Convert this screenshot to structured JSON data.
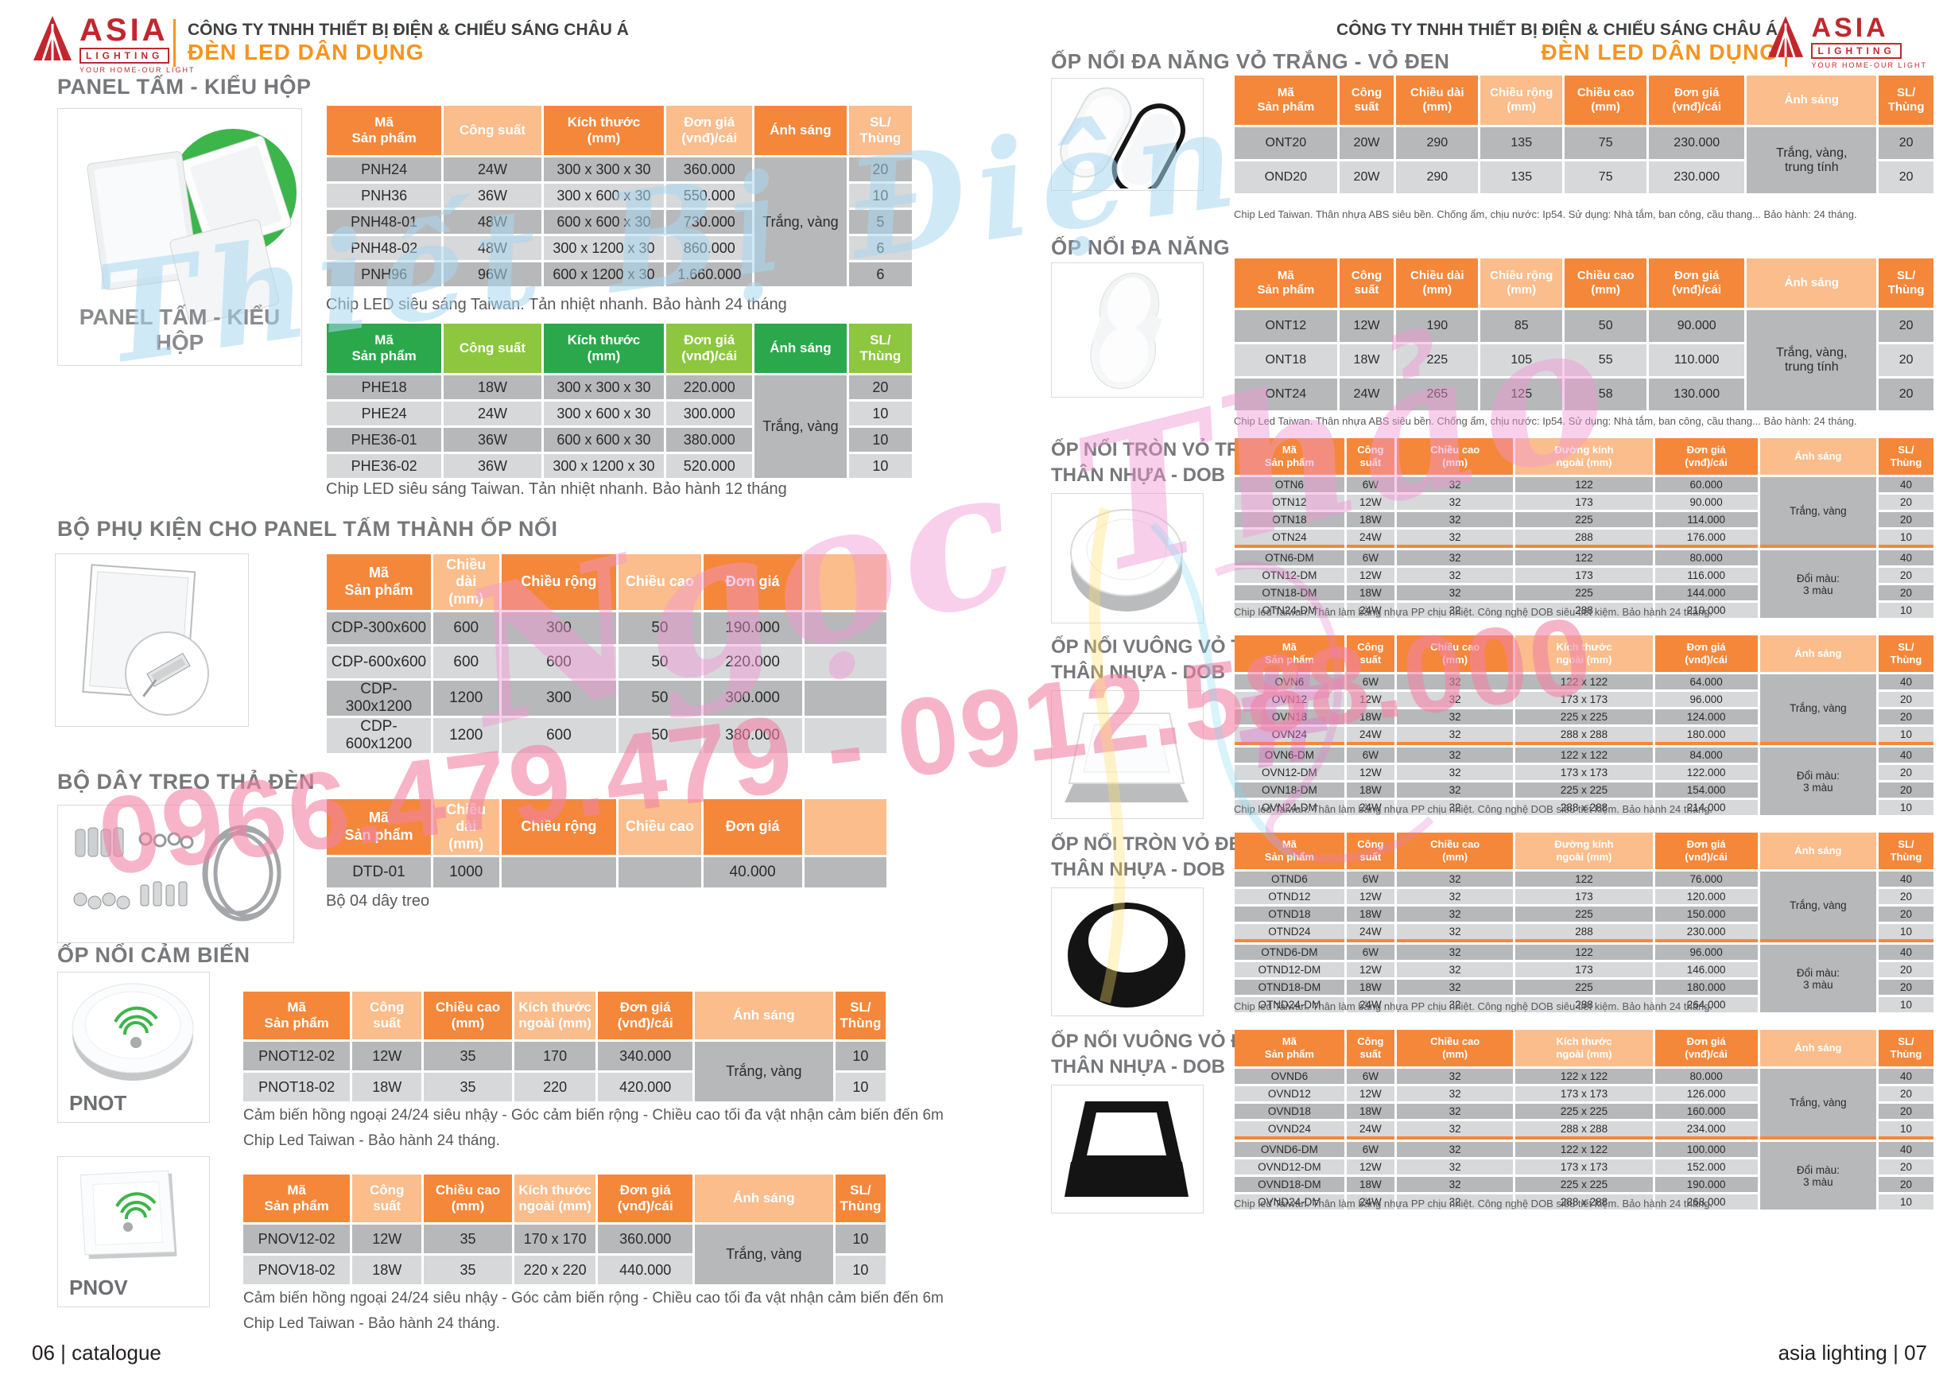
{
  "brand": {
    "name": "ASIA",
    "sub": "LIGHTING",
    "tagline": "YOUR HOME-OUR LIGHT",
    "company": "CÔNG TY TNHH THIẾT BỊ ĐIỆN & CHIẾU SÁNG CHÂU Á",
    "division": "ĐÈN LED DÂN DỤNG"
  },
  "footer": {
    "left": "06 | catalogue",
    "right": "asia lighting | 07"
  },
  "watermark": {
    "line1": "Thiết Bị Điện",
    "line2": "Ngọc Thảo",
    "hash": "#",
    "phone": "0966.479.479 - 0912.588.000"
  },
  "colors": {
    "orange_dark": "#F5873B",
    "orange_light": "#FBBD8C",
    "green_dark": "#2BA84C",
    "green_light": "#8DC63F",
    "row_dark": "#b7b8ba",
    "row_light": "#d7d8da",
    "merge_grey": "#c8c9cb",
    "merge_orange": "#F9C795",
    "accent": "#F7941E",
    "brand_red": "#C1272D"
  },
  "left": {
    "s1_title": "PANEL TẤM - KIỂU HỘP",
    "img1_caption": "PANEL TẤM - KIỂU HỘP",
    "t_pnh": {
      "theme": "orange",
      "widths": [
        20,
        17,
        21,
        15,
        16,
        11
      ],
      "columns": [
        "Mã\nSản phẩm",
        "Công suất",
        "Kích thước\n(mm)",
        "Đơn giá\n(vnđ)/cái",
        "Ánh sáng",
        "SL/\nThùng"
      ],
      "rows": [
        [
          "PNH24",
          "24W",
          "300 x 300 x 30",
          "360.000",
          null,
          "20"
        ],
        [
          "PNH36",
          "36W",
          "300 x 600 x 30",
          "550.000",
          null,
          "10"
        ],
        [
          "PNH48-01",
          "48W",
          "600 x 600 x 30",
          "730.000",
          null,
          "5"
        ],
        [
          "PNH48-02",
          "48W",
          "300 x 1200 x 30",
          "860.000",
          null,
          "6"
        ],
        [
          "PNH96",
          "96W",
          "600 x 1200 x 30",
          "1.660.000",
          null,
          "6"
        ]
      ],
      "merges": [
        {
          "col": 4,
          "from": 0,
          "to": 4,
          "text": "Trắng, vàng",
          "style": "grey"
        }
      ]
    },
    "pnh_note": "Chip LED siêu sáng  Taiwan. Tản nhiệt nhanh. Bảo hành 24 tháng",
    "t_phe": {
      "theme": "green",
      "widths": [
        20,
        17,
        21,
        15,
        16,
        11
      ],
      "columns": [
        "Mã\nSản phẩm",
        "Công suất",
        "Kích thước\n(mm)",
        "Đơn giá\n(vnđ)/cái",
        "Ánh sáng",
        "SL/\nThùng"
      ],
      "rows": [
        [
          "PHE18",
          "18W",
          "300 x 300 x 30",
          "220.000",
          null,
          "20"
        ],
        [
          "PHE24",
          "24W",
          "300 x 600 x 30",
          "300.000",
          null,
          "10"
        ],
        [
          "PHE36-01",
          "36W",
          "600 x 600 x 30",
          "380.000",
          null,
          "10"
        ],
        [
          "PHE36-02",
          "36W",
          "300 x 1200 x 30",
          "520.000",
          null,
          "10"
        ]
      ],
      "merges": [
        {
          "col": 4,
          "from": 0,
          "to": 3,
          "text": "Trắng, vàng",
          "style": "grey"
        }
      ]
    },
    "phe_note": "Chip LED siêu sáng  Taiwan. Tản nhiệt nhanh. Bảo hành 12 tháng",
    "s2_title": "BỘ PHỤ KIỆN CHO PANEL TẤM THÀNH ỐP NỔI",
    "t_cdp": {
      "theme": "orange",
      "widths": [
        19,
        12,
        21,
        15,
        18,
        15
      ],
      "columns": [
        "Mã\nSản phẩm",
        "Chiều dài\n(mm)",
        "Chiều rộng",
        "Chiều cao",
        "Đơn giá",
        ""
      ],
      "rows": [
        [
          "CDP-300x600",
          "600",
          "300",
          "50",
          "190.000",
          ""
        ],
        [
          "CDP-600x600",
          "600",
          "600",
          "50",
          "220.000",
          ""
        ],
        [
          "CDP-300x1200",
          "1200",
          "300",
          "50",
          "300.000",
          ""
        ],
        [
          "CDP-600x1200",
          "1200",
          "600",
          "50",
          "380.000",
          ""
        ]
      ]
    },
    "s3_title": "BỘ DÂY TREO THẢ ĐÈN",
    "t_dtd": {
      "theme": "orange",
      "widths": [
        19,
        12,
        21,
        15,
        18,
        15
      ],
      "columns": [
        "Mã\nSản phẩm",
        "Chiều dài\n(mm)",
        "Chiều rộng",
        "Chiều cao",
        "Đơn giá",
        ""
      ],
      "rows": [
        [
          "DTD-01",
          "1000",
          "",
          "",
          "40.000",
          ""
        ]
      ]
    },
    "dtd_note": "Bộ 04 dây treo",
    "s4_title": "ỐP NỔI CẢM BIẾN",
    "pnot_label": "PNOT",
    "t_pnot": {
      "theme": "orange",
      "widths": [
        17,
        11,
        14,
        13,
        15,
        22,
        8
      ],
      "columns": [
        "Mã\nSản phẩm",
        "Công\nsuất",
        "Chiều cao\n(mm)",
        "Kích thước\nngoài (mm)",
        "Đơn giá\n(vnđ)/cái",
        "Ánh sáng",
        "SL/\nThùng"
      ],
      "rows": [
        [
          "PNOT12-02",
          "12W",
          "35",
          "170",
          "340.000",
          null,
          "10"
        ],
        [
          "PNOT18-02",
          "18W",
          "35",
          "220",
          "420.000",
          null,
          "10"
        ]
      ],
      "merges": [
        {
          "col": 5,
          "from": 0,
          "to": 1,
          "text": "Trắng, vàng",
          "style": "grey"
        }
      ]
    },
    "sensor_note1": "Cảm biến hồng ngoại 24/24 siêu nhậy - Góc cảm biến rộng - Chiều cao tối đa vật nhận cảm biến đến 6m",
    "sensor_note2": "Chip Led Taiwan - Bảo hành 24 tháng.",
    "pnov_label": "PNOV",
    "t_pnov": {
      "theme": "orange",
      "widths": [
        17,
        11,
        14,
        13,
        15,
        22,
        8
      ],
      "columns": [
        "Mã\nSản phẩm",
        "Công\nsuất",
        "Chiều cao\n(mm)",
        "Kích thước\nngoài (mm)",
        "Đơn giá\n(vnđ)/cái",
        "Ánh sáng",
        "SL/\nThùng"
      ],
      "rows": [
        [
          "PNOV12-02",
          "12W",
          "35",
          "170 x 170",
          "360.000",
          null,
          "10"
        ],
        [
          "PNOV18-02",
          "18W",
          "35",
          "220 x 220",
          "440.000",
          null,
          "10"
        ]
      ],
      "merges": [
        {
          "col": 5,
          "from": 0,
          "to": 1,
          "text": "Trắng, vàng",
          "style": "grey"
        }
      ]
    }
  },
  "right": {
    "s1_title": "ỐP NỔI ĐA NĂNG VỎ TRẮNG - VỎ ĐEN",
    "t_ont20": {
      "theme": "orange",
      "widths": [
        15,
        8,
        12,
        12,
        12,
        14,
        19,
        8
      ],
      "shades": [
        "d",
        "d",
        "d",
        "l",
        "d",
        "d",
        "l",
        "d"
      ],
      "columns": [
        "Mã\nSản phẩm",
        "Công\nsuất",
        "Chiều dài\n(mm)",
        "Chiều rộng\n(mm)",
        "Chiều cao\n(mm)",
        "Đơn giá\n(vnđ)/cái",
        "Ánh sáng",
        "SL/\nThùng"
      ],
      "rows": [
        [
          "ONT20",
          "20W",
          "290",
          "135",
          "75",
          "230.000",
          null,
          "20"
        ],
        [
          "OND20",
          "20W",
          "290",
          "135",
          "75",
          "230.000",
          null,
          "20"
        ]
      ],
      "merges": [
        {
          "col": 6,
          "from": 0,
          "to": 1,
          "text": "Trắng, vàng,\ntrung tính",
          "style": "grey"
        }
      ]
    },
    "abs_note": "Chip Led Taiwan. Thân nhựa ABS siêu bền. Chống ẩm, chịu nước: Ip54. Sử dụng: Nhà tắm, ban công, cầu thang... Bảo hành: 24 tháng.",
    "s2_title": "ỐP NỔI  ĐA NĂNG",
    "t_ont": {
      "theme": "orange",
      "widths": [
        15,
        8,
        12,
        12,
        12,
        14,
        19,
        8
      ],
      "shades": [
        "d",
        "d",
        "d",
        "l",
        "d",
        "d",
        "l",
        "d"
      ],
      "columns": [
        "Mã\nSản phẩm",
        "Công\nsuất",
        "Chiều dài\n(mm)",
        "Chiều rộng\n(mm)",
        "Chiều cao\n(mm)",
        "Đơn giá\n(vnđ)/cái",
        "Ánh sáng",
        "SL/\nThùng"
      ],
      "rows": [
        [
          "ONT12",
          "12W",
          "190",
          "85",
          "50",
          "90.000",
          null,
          "20"
        ],
        [
          "ONT18",
          "18W",
          "225",
          "105",
          "55",
          "110.000",
          null,
          "20"
        ],
        [
          "ONT24",
          "24W",
          "265",
          "125",
          "58",
          "130.000",
          null,
          "20"
        ]
      ],
      "merges": [
        {
          "col": 6,
          "from": 0,
          "to": 2,
          "text": "Trắng, vàng,\ntrung tính",
          "style": "grey"
        }
      ]
    },
    "s3_title_1": "ỐP NỔI TRÒN VỎ TRẮNG",
    "s3_title_2": "THÂN NHỰA - DOB",
    "t_otn": {
      "theme": "orange",
      "widths": [
        16,
        7,
        17,
        20,
        15,
        17,
        8
      ],
      "shades": [
        "d",
        "d",
        "d",
        "l",
        "d",
        "l",
        "d"
      ],
      "columns": [
        "Mã\nSản phẩm",
        "Công\nsuất",
        "Chiều cao\n(mm)",
        "Đường kính\nngoài (mm)",
        "Đơn giá\n(vnđ)/cái",
        "Ánh sáng",
        "SL/\nThùng"
      ],
      "rows": [
        [
          "OTN6",
          "6W",
          "32",
          "122",
          "60.000",
          null,
          "40"
        ],
        [
          "OTN12",
          "12W",
          "32",
          "173",
          "90.000",
          null,
          "20"
        ],
        [
          "OTN18",
          "18W",
          "32",
          "225",
          "114.000",
          null,
          "20"
        ],
        [
          "OTN24",
          "24W",
          "32",
          "288",
          "176.000",
          null,
          "10"
        ],
        [
          "OTN6-DM",
          "6W",
          "32",
          "122",
          "80.000",
          null,
          "40"
        ],
        [
          "OTN12-DM",
          "12W",
          "32",
          "173",
          "116.000",
          null,
          "20"
        ],
        [
          "OTN18-DM",
          "18W",
          "32",
          "225",
          "144.000",
          null,
          "20"
        ],
        [
          "OTN24-DM",
          "24W",
          "32",
          "288",
          "210.000",
          null,
          "10"
        ]
      ],
      "merges": [
        {
          "col": 5,
          "from": 0,
          "to": 3,
          "text": "Trắng, vàng",
          "style": "grey"
        },
        {
          "col": 5,
          "from": 4,
          "to": 7,
          "text": "Đổi màu:\n3 màu",
          "style": "orange"
        }
      ],
      "divider_after": 3
    },
    "dob_note": "Chip led Taiwan. Thân làm bằng nhựa PP chịu nhiệt. Công nghệ DOB siêu tiết kiệm. Bảo hành 24 tháng.",
    "s4_title_1": "ỐP NỔI VUÔNG VỎ TRẮNG",
    "s4_title_2": "THÂN NHỰA - DOB",
    "t_ovn": {
      "theme": "orange",
      "widths": [
        16,
        7,
        17,
        20,
        15,
        17,
        8
      ],
      "shades": [
        "d",
        "d",
        "d",
        "l",
        "d",
        "l",
        "d"
      ],
      "columns": [
        "Mã\nSản phẩm",
        "Công\nsuất",
        "Chiều cao\n(mm)",
        "Kích thước\nngoài (mm)",
        "Đơn giá\n(vnđ)/cái",
        "Ánh sáng",
        "SL/\nThùng"
      ],
      "rows": [
        [
          "OVN6",
          "6W",
          "32",
          "122 x 122",
          "64.000",
          null,
          "40"
        ],
        [
          "OVN12",
          "12W",
          "32",
          "173 x 173",
          "96.000",
          null,
          "20"
        ],
        [
          "OVN18",
          "18W",
          "32",
          "225 x 225",
          "124.000",
          null,
          "20"
        ],
        [
          "OVN24",
          "24W",
          "32",
          "288 x 288",
          "180.000",
          null,
          "10"
        ],
        [
          "OVN6-DM",
          "6W",
          "32",
          "122 x 122",
          "84.000",
          null,
          "40"
        ],
        [
          "OVN12-DM",
          "12W",
          "32",
          "173 x 173",
          "122.000",
          null,
          "20"
        ],
        [
          "OVN18-DM",
          "18W",
          "32",
          "225 x 225",
          "154.000",
          null,
          "20"
        ],
        [
          "OVN24-DM",
          "24W",
          "32",
          "288 x 288",
          "214.000",
          null,
          "10"
        ]
      ],
      "merges": [
        {
          "col": 5,
          "from": 0,
          "to": 3,
          "text": "Trắng, vàng",
          "style": "grey"
        },
        {
          "col": 5,
          "from": 4,
          "to": 7,
          "text": "Đổi màu:\n3 màu",
          "style": "orange"
        }
      ],
      "divider_after": 3
    },
    "s5_title_1": "ỐP NỔI TRÒN  VỎ ĐEN",
    "s5_title_2": "THÂN NHỰA - DOB",
    "t_otnd": {
      "theme": "orange",
      "widths": [
        16,
        7,
        17,
        20,
        15,
        17,
        8
      ],
      "shades": [
        "d",
        "d",
        "d",
        "l",
        "d",
        "l",
        "d"
      ],
      "columns": [
        "Mã\nSản phẩm",
        "Công\nsuất",
        "Chiều cao\n(mm)",
        "Đường kính\nngoài (mm)",
        "Đơn giá\n(vnđ)/cái",
        "Ánh sáng",
        "SL/\nThùng"
      ],
      "rows": [
        [
          "OTND6",
          "6W",
          "32",
          "122",
          "76.000",
          null,
          "40"
        ],
        [
          "OTND12",
          "12W",
          "32",
          "173",
          "120.000",
          null,
          "20"
        ],
        [
          "OTND18",
          "18W",
          "32",
          "225",
          "150.000",
          null,
          "20"
        ],
        [
          "OTND24",
          "24W",
          "32",
          "288",
          "230.000",
          null,
          "10"
        ],
        [
          "OTND6-DM",
          "6W",
          "32",
          "122",
          "96.000",
          null,
          "40"
        ],
        [
          "OTND12-DM",
          "12W",
          "32",
          "173",
          "146.000",
          null,
          "20"
        ],
        [
          "OTND18-DM",
          "18W",
          "32",
          "225",
          "180.000",
          null,
          "20"
        ],
        [
          "OTND24-DM",
          "24W",
          "32",
          "288",
          "264.000",
          null,
          "10"
        ]
      ],
      "merges": [
        {
          "col": 5,
          "from": 0,
          "to": 3,
          "text": "Trắng, vàng",
          "style": "grey"
        },
        {
          "col": 5,
          "from": 4,
          "to": 7,
          "text": "Đổi màu:\n3 màu",
          "style": "orange"
        }
      ],
      "divider_after": 3
    },
    "s6_title_1": "ỐP NỔI  VUÔNG VỎ ĐEN",
    "s6_title_2": "THÂN NHỰA - DOB",
    "t_ovnd": {
      "theme": "orange",
      "widths": [
        16,
        7,
        17,
        20,
        15,
        17,
        8
      ],
      "shades": [
        "d",
        "d",
        "d",
        "l",
        "d",
        "l",
        "d"
      ],
      "columns": [
        "Mã\nSản phẩm",
        "Công\nsuất",
        "Chiều cao\n(mm)",
        "Kích thước\nngoài (mm)",
        "Đơn giá\n(vnđ)/cái",
        "Ánh sáng",
        "SL/\nThùng"
      ],
      "rows": [
        [
          "OVND6",
          "6W",
          "32",
          "122 x 122",
          "80.000",
          null,
          "40"
        ],
        [
          "OVND12",
          "12W",
          "32",
          "173 x 173",
          "126.000",
          null,
          "20"
        ],
        [
          "OVND18",
          "18W",
          "32",
          "225 x 225",
          "160.000",
          null,
          "20"
        ],
        [
          "OVND24",
          "24W",
          "32",
          "288 x 288",
          "234.000",
          null,
          "10"
        ],
        [
          "OVND6-DM",
          "6W",
          "32",
          "122 x 122",
          "100.000",
          null,
          "40"
        ],
        [
          "OVND12-DM",
          "12W",
          "32",
          "173 x 173",
          "152.000",
          null,
          "20"
        ],
        [
          "OVND18-DM",
          "18W",
          "32",
          "225 x 225",
          "190.000",
          null,
          "20"
        ],
        [
          "OVND24-DM",
          "24W",
          "32",
          "288 x 288",
          "268.000",
          null,
          "10"
        ]
      ],
      "merges": [
        {
          "col": 5,
          "from": 0,
          "to": 3,
          "text": "Trắng, vàng",
          "style": "grey"
        },
        {
          "col": 5,
          "from": 4,
          "to": 7,
          "text": "Đổi màu:\n3 màu",
          "style": "orange"
        }
      ],
      "divider_after": 3
    }
  }
}
